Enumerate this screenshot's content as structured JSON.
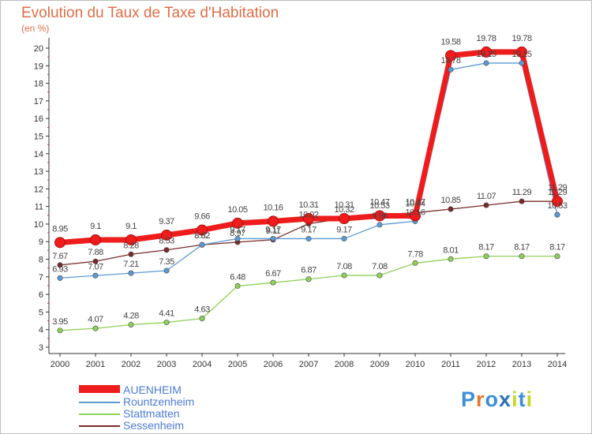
{
  "chart_data": {
    "type": "line",
    "title": "Evolution du Taux de Taxe d'Habitation",
    "unit": "(en %)",
    "x": [
      "2000",
      "2001",
      "2002",
      "2003",
      "2004",
      "2005",
      "2006",
      "2007",
      "2008",
      "2009",
      "2010",
      "2011",
      "2012",
      "2013",
      "2014"
    ],
    "ylim": [
      3,
      20
    ],
    "yticks": [
      3,
      4,
      5,
      6,
      7,
      8,
      9,
      10,
      11,
      12,
      13,
      14,
      15,
      16,
      17,
      18,
      19,
      20
    ],
    "grid": false,
    "legend_position": "bottom-left",
    "series": [
      {
        "name": "AUENHEIM",
        "color": "#ee1c1c",
        "values": [
          8.95,
          9.1,
          9.1,
          9.37,
          9.66,
          10.05,
          10.16,
          10.31,
          10.31,
          10.47,
          10.47,
          19.58,
          19.78,
          19.78,
          11.29
        ],
        "labels": [
          "8.95",
          "9.1",
          "9.1",
          "9.37",
          "9.66",
          "10.05",
          "10.16",
          "10.31",
          "10.31",
          "10.47",
          "10.47",
          "19.58",
          "19.78",
          "19.78",
          "11.29"
        ]
      },
      {
        "name": "Rountzenheim",
        "color": "#5b9bd5",
        "values": [
          6.93,
          7.07,
          7.21,
          7.35,
          8.82,
          9.17,
          9.17,
          9.17,
          9.17,
          9.96,
          10.16,
          18.78,
          19.15,
          19.15,
          10.53
        ],
        "labels": [
          "6.93",
          "7.07",
          "7.21",
          "7.35",
          "8.82",
          "9.17",
          "9.17",
          "9.17",
          "9.17",
          "9.96",
          "10.16",
          "18.78",
          "19.15",
          "19.15",
          "10.53"
        ]
      },
      {
        "name": "Stattmatten",
        "color": "#8fd158",
        "values": [
          3.95,
          4.07,
          4.28,
          4.41,
          4.63,
          6.48,
          6.67,
          6.87,
          7.08,
          7.08,
          7.78,
          8.01,
          8.17,
          8.17,
          8.17
        ],
        "labels": [
          "3.95",
          "4.07",
          "4.28",
          "4.41",
          "4.63",
          "6.48",
          "6.67",
          "6.87",
          "7.08",
          "7.08",
          "7.78",
          "8.01",
          "8.17",
          "8.17",
          "8.17"
        ]
      },
      {
        "name": "Sessenheim",
        "color": "#7a2a2a",
        "values": [
          7.67,
          7.88,
          8.28,
          8.53,
          8.82,
          8.97,
          9.11,
          10.02,
          10.32,
          10.53,
          10.64,
          10.85,
          11.07,
          11.29,
          11.29
        ],
        "labels": [
          "7.67",
          "7.88",
          "8.28",
          "8.53",
          "8.82",
          "8.97",
          "9.11",
          "10.02",
          "10.32",
          "10.53",
          "10.64",
          "10.85",
          "11.07",
          "11.29",
          "11.29"
        ]
      }
    ]
  },
  "legend": {
    "items": [
      {
        "label": "AUENHEIM"
      },
      {
        "label": "Rountzenheim"
      },
      {
        "label": "Stattmatten"
      },
      {
        "label": "Sessenheim"
      }
    ]
  },
  "logo": {
    "letters": [
      "P",
      "r",
      "o",
      "x",
      "i",
      "t",
      "i"
    ],
    "colors": [
      "#3b8fd9",
      "#e9772a",
      "#3b8fd9",
      "#2c6fb5",
      "#c8d62b",
      "#3b8fd9",
      "#c8d62b"
    ]
  }
}
